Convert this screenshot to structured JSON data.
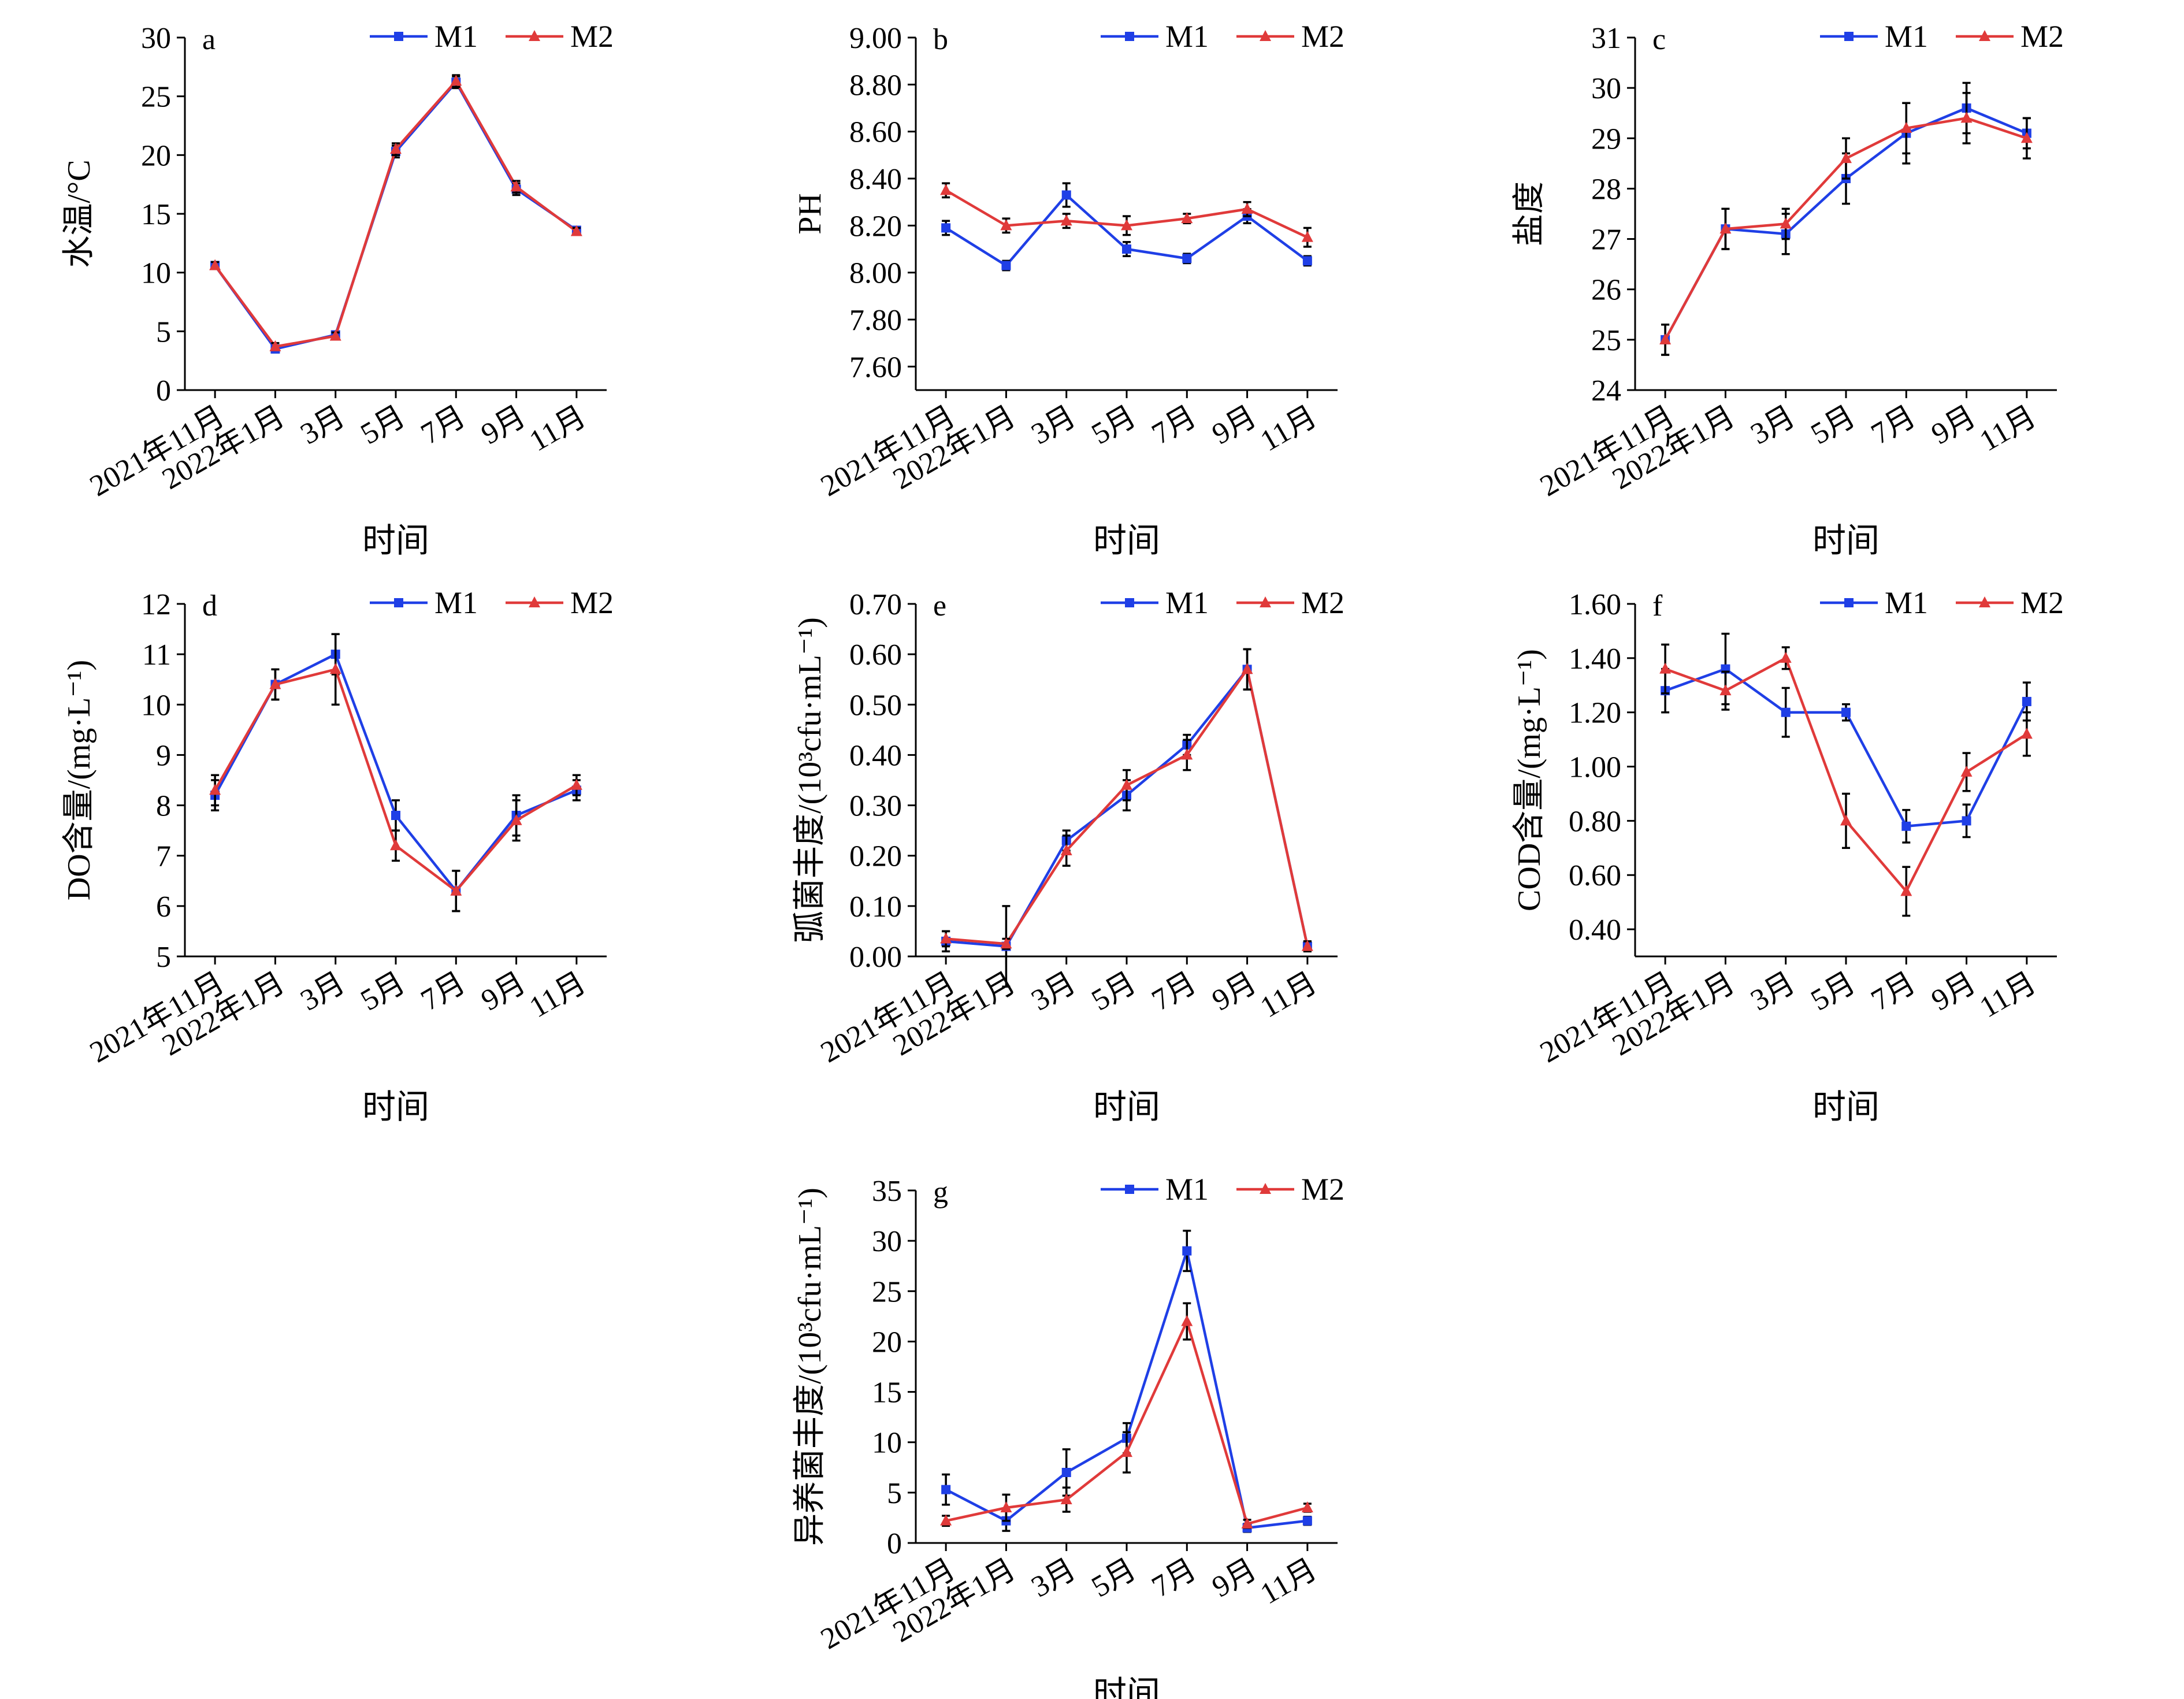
{
  "legend": {
    "labels": [
      "M1",
      "M2"
    ]
  },
  "colors": {
    "M1": "#1f3fe6",
    "M2": "#e03a3a",
    "axis": "#000000",
    "error_bar": "#000000"
  },
  "chart_data": [
    {
      "panel": "a",
      "type": "line",
      "categories": [
        "2021年11月",
        "2022年1月",
        "3月",
        "5月",
        "7月",
        "9月",
        "11月"
      ],
      "xlabel": "时间",
      "ylabel": "水温/°C",
      "ylim": [
        0,
        30
      ],
      "yticks": [
        0,
        5,
        10,
        15,
        20,
        25,
        30
      ],
      "ytick_labels": [
        "0",
        "5",
        "10",
        "15",
        "20",
        "25",
        "30"
      ],
      "legend_position": "top-right",
      "grid": false,
      "series": [
        {
          "name": "M1",
          "values": [
            10.6,
            3.5,
            4.7,
            20.3,
            26.2,
            17.1,
            13.6
          ],
          "errors": [
            0.3,
            0.3,
            0.3,
            0.5,
            0.5,
            0.5,
            0.3
          ]
        },
        {
          "name": "M2",
          "values": [
            10.6,
            3.7,
            4.6,
            20.5,
            26.3,
            17.3,
            13.5
          ],
          "errors": [
            0.3,
            0.3,
            0.3,
            0.5,
            0.5,
            0.5,
            0.3
          ]
        }
      ]
    },
    {
      "panel": "b",
      "type": "line",
      "categories": [
        "2021年11月",
        "2022年1月",
        "3月",
        "5月",
        "7月",
        "9月",
        "11月"
      ],
      "xlabel": "时间",
      "ylabel": "PH",
      "ylim": [
        7.5,
        9.0
      ],
      "yticks": [
        7.6,
        7.8,
        8.0,
        8.2,
        8.4,
        8.6,
        8.8,
        9.0
      ],
      "ytick_labels": [
        "7.60",
        "7.80",
        "8.00",
        "8.20",
        "8.40",
        "8.60",
        "8.80",
        "9.00"
      ],
      "legend_position": "top-right",
      "grid": false,
      "series": [
        {
          "name": "M1",
          "values": [
            8.19,
            8.03,
            8.33,
            8.1,
            8.06,
            8.24,
            8.05
          ],
          "errors": [
            0.03,
            0.02,
            0.05,
            0.03,
            0.02,
            0.03,
            0.02
          ]
        },
        {
          "name": "M2",
          "values": [
            8.35,
            8.2,
            8.22,
            8.2,
            8.23,
            8.27,
            8.15
          ],
          "errors": [
            0.03,
            0.03,
            0.03,
            0.04,
            0.02,
            0.03,
            0.04
          ]
        }
      ]
    },
    {
      "panel": "c",
      "type": "line",
      "categories": [
        "2021年11月",
        "2022年1月",
        "3月",
        "5月",
        "7月",
        "9月",
        "11月"
      ],
      "xlabel": "时间",
      "ylabel": "盐度",
      "ylim": [
        24,
        31
      ],
      "yticks": [
        24,
        25,
        26,
        27,
        28,
        29,
        30,
        31
      ],
      "ytick_labels": [
        "24",
        "25",
        "26",
        "27",
        "28",
        "29",
        "30",
        "31"
      ],
      "legend_position": "top-right",
      "grid": false,
      "series": [
        {
          "name": "M1",
          "values": [
            25.0,
            27.2,
            27.1,
            28.2,
            29.1,
            29.6,
            29.1
          ],
          "errors": [
            0.3,
            0.4,
            0.4,
            0.5,
            0.6,
            0.5,
            0.3
          ]
        },
        {
          "name": "M2",
          "values": [
            25.0,
            27.2,
            27.3,
            28.6,
            29.2,
            29.4,
            29.0
          ],
          "errors": [
            0.3,
            0.4,
            0.3,
            0.4,
            0.5,
            0.5,
            0.4
          ]
        }
      ]
    },
    {
      "panel": "d",
      "type": "line",
      "categories": [
        "2021年11月",
        "2022年1月",
        "3月",
        "5月",
        "7月",
        "9月",
        "11月"
      ],
      "xlabel": "时间",
      "ylabel": "DO含量/(mg·L⁻¹)",
      "ylim": [
        5,
        12
      ],
      "yticks": [
        5,
        6,
        7,
        8,
        9,
        10,
        11,
        12
      ],
      "ytick_labels": [
        "5",
        "6",
        "7",
        "8",
        "9",
        "10",
        "11",
        "12"
      ],
      "legend_position": "top-right",
      "grid": false,
      "series": [
        {
          "name": "M1",
          "values": [
            8.2,
            10.4,
            11.0,
            7.8,
            6.3,
            7.8,
            8.3
          ],
          "errors": [
            0.3,
            0.3,
            0.4,
            0.3,
            0.4,
            0.4,
            0.2
          ]
        },
        {
          "name": "M2",
          "values": [
            8.3,
            10.4,
            10.7,
            7.2,
            6.3,
            7.7,
            8.4
          ],
          "errors": [
            0.3,
            0.3,
            0.7,
            0.3,
            0.4,
            0.4,
            0.2
          ]
        }
      ]
    },
    {
      "panel": "e",
      "type": "line",
      "categories": [
        "2021年11月",
        "2022年1月",
        "3月",
        "5月",
        "7月",
        "9月",
        "11月"
      ],
      "xlabel": "时间",
      "ylabel": "弧菌丰度/(10³cfu·mL⁻¹)",
      "ylim": [
        0,
        0.7
      ],
      "yticks": [
        0,
        0.1,
        0.2,
        0.3,
        0.4,
        0.5,
        0.6,
        0.7
      ],
      "ytick_labels": [
        "0.00",
        "0.10",
        "0.20",
        "0.30",
        "0.40",
        "0.50",
        "0.60",
        "0.70"
      ],
      "legend_position": "top-right",
      "grid": false,
      "series": [
        {
          "name": "M1",
          "values": [
            0.03,
            0.02,
            0.23,
            0.32,
            0.42,
            0.57,
            0.02
          ],
          "errors": [
            0.02,
            0.08,
            0.02,
            0.03,
            0.02,
            0.04,
            0.01
          ]
        },
        {
          "name": "M2",
          "values": [
            0.035,
            0.025,
            0.21,
            0.34,
            0.4,
            0.57,
            0.02
          ],
          "errors": [
            0.015,
            0.01,
            0.03,
            0.03,
            0.03,
            0.04,
            0.01
          ]
        }
      ]
    },
    {
      "panel": "f",
      "type": "line",
      "categories": [
        "2021年11月",
        "2022年1月",
        "3月",
        "5月",
        "7月",
        "9月",
        "11月"
      ],
      "xlabel": "时间",
      "ylabel": "COD含量/(mg·L⁻¹)",
      "ylim": [
        0.3,
        1.6
      ],
      "yticks": [
        0.4,
        0.6,
        0.8,
        1.0,
        1.2,
        1.4,
        1.6
      ],
      "ytick_labels": [
        "0.40",
        "0.60",
        "0.80",
        "1.00",
        "1.20",
        "1.40",
        "1.60"
      ],
      "legend_position": "top-right",
      "grid": false,
      "series": [
        {
          "name": "M1",
          "values": [
            1.28,
            1.36,
            1.2,
            1.2,
            0.78,
            0.8,
            1.24
          ],
          "errors": [
            0.08,
            0.13,
            0.09,
            0.03,
            0.06,
            0.06,
            0.07
          ]
        },
        {
          "name": "M2",
          "values": [
            1.36,
            1.28,
            1.4,
            0.8,
            0.54,
            0.98,
            1.12
          ],
          "errors": [
            0.09,
            0.07,
            0.04,
            0.1,
            0.09,
            0.07,
            0.08
          ]
        }
      ]
    },
    {
      "panel": "g",
      "type": "line",
      "categories": [
        "2021年11月",
        "2022年1月",
        "3月",
        "5月",
        "7月",
        "9月",
        "11月"
      ],
      "xlabel": "时间",
      "ylabel": "异养菌丰度/(10³cfu·mL⁻¹)",
      "ylim": [
        0,
        35
      ],
      "yticks": [
        0,
        5,
        10,
        15,
        20,
        25,
        30,
        35
      ],
      "ytick_labels": [
        "0",
        "5",
        "10",
        "15",
        "20",
        "25",
        "30",
        "35"
      ],
      "legend_position": "top-right",
      "grid": false,
      "series": [
        {
          "name": "M1",
          "values": [
            5.3,
            2.2,
            7.0,
            10.4,
            29.0,
            1.5,
            2.2
          ],
          "errors": [
            1.5,
            1.0,
            2.3,
            1.5,
            2.0,
            0.4,
            0.4
          ]
        },
        {
          "name": "M2",
          "values": [
            2.2,
            3.5,
            4.3,
            9.0,
            22.0,
            1.9,
            3.5
          ],
          "errors": [
            0.5,
            1.3,
            1.2,
            2.0,
            1.8,
            0.4,
            0.4
          ]
        }
      ]
    }
  ]
}
